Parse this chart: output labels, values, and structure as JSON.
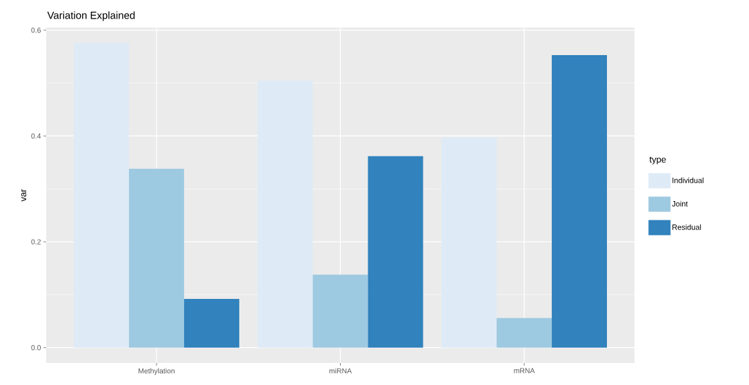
{
  "chart_data": {
    "type": "bar",
    "title": "Variation Explained",
    "ylabel": "var",
    "legend_title": "type",
    "categories": [
      "Methylation",
      "miRNA",
      "mRNA"
    ],
    "series": [
      {
        "name": "Individual",
        "color": "#deebf7",
        "values": [
          0.576,
          0.504,
          0.397
        ]
      },
      {
        "name": "Joint",
        "color": "#9ecae1",
        "values": [
          0.338,
          0.138,
          0.056
        ]
      },
      {
        "name": "Residual",
        "color": "#3182bd",
        "values": [
          0.092,
          0.362,
          0.553
        ]
      }
    ],
    "ylim": [
      -0.029,
      0.605
    ],
    "yticks": [
      {
        "value": 0,
        "label": "0.0"
      },
      {
        "value": 0.2,
        "label": "0.2"
      },
      {
        "value": 0.4,
        "label": "0.4"
      },
      {
        "value": 0.6,
        "label": "0.6"
      }
    ],
    "grid": true,
    "legend": "right"
  }
}
